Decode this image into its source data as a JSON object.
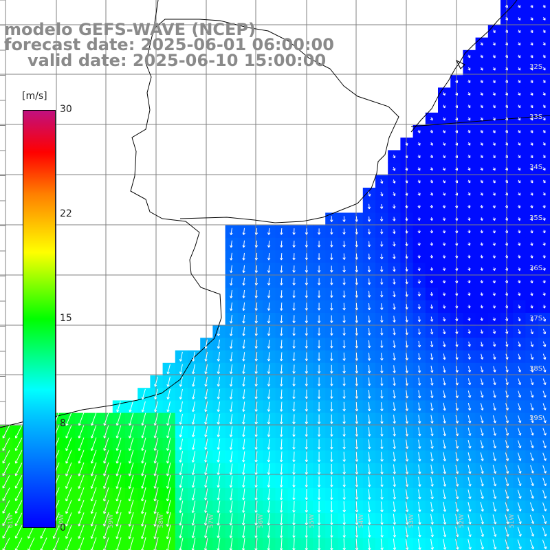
{
  "title": {
    "line1": "modelo GEFS-WAVE (NCEP)",
    "line2": "forecast date: 2025-06-01 06:00:00",
    "line3": "valid date: 2025-06-10 15:00:00"
  },
  "colorbar": {
    "unit": "[m/s]",
    "ticks": [
      "30",
      "22",
      "15",
      "8",
      "0"
    ],
    "tick_values": [
      30,
      22,
      15,
      8,
      0
    ],
    "range": [
      0,
      30
    ],
    "colors": [
      "#0000ff",
      "#00c8ff",
      "#00ffff",
      "#00ff00",
      "#ffff00",
      "#ff7f00",
      "#ff0000",
      "#c0107f"
    ]
  },
  "map": {
    "lat_labels": [
      "32S",
      "33S",
      "34S",
      "35S",
      "36S",
      "37S",
      "38S",
      "39S"
    ],
    "lon_labels": [
      "61W",
      "60W",
      "59W",
      "58W",
      "57W",
      "56W",
      "55W",
      "54W",
      "53W",
      "52W",
      "51W"
    ],
    "land_color": "#ffffff",
    "grid_color": "#808080",
    "coast_color": "#000000",
    "arrow_color": "#ffffff"
  }
}
